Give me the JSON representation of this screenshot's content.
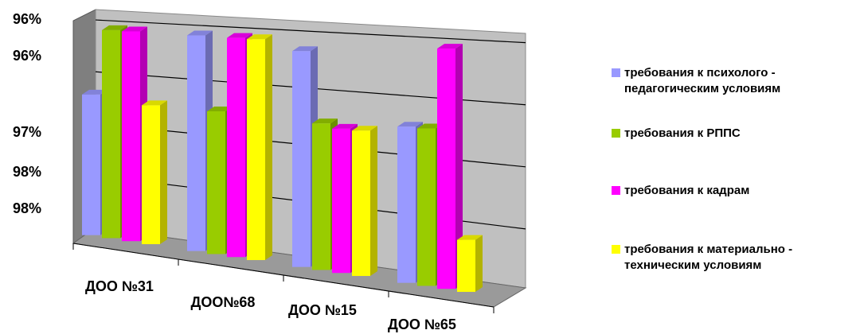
{
  "chart_data": {
    "type": "bar",
    "three_d": true,
    "categories": [
      "ДОО №31",
      "ДОО№68",
      "ДОО №15",
      "ДОО №65"
    ],
    "series": [
      {
        "name": "требования к психолого - педагогическим условиям",
        "color": "#9999ff",
        "values": [
          97.35,
          97.98,
          97.9,
          97.32
        ]
      },
      {
        "name": "требования к РППС",
        "color": "#99cc00",
        "values": [
          97.98,
          97.3,
          97.28,
          97.32
        ]
      },
      {
        "name": "требования к кадрам",
        "color": "#ff00ff",
        "values": [
          97.98,
          97.98,
          97.25,
          98.0
        ]
      },
      {
        "name": "требования к материально - техническим условиям",
        "color": "#ffff00",
        "values": [
          97.3,
          97.98,
          97.25,
          96.43
        ]
      }
    ],
    "y_tick_labels": [
      "96%",
      "96%",
      "97%",
      "98%",
      "98%"
    ],
    "ylim": [
      96.0,
      98.1
    ],
    "grid": true,
    "legend_position": "right",
    "title": "",
    "xlabel": "",
    "ylabel": ""
  }
}
